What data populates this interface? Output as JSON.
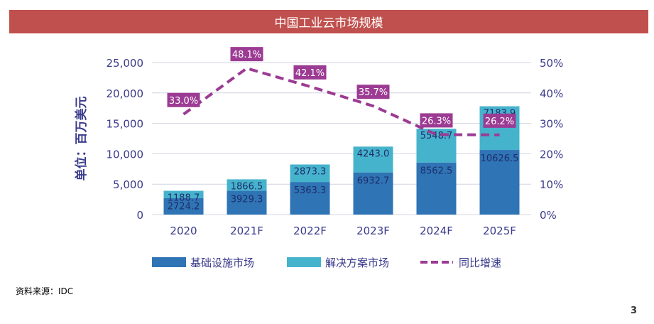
{
  "title": "中国工业云市场规模",
  "source": "资料来源：IDC",
  "page_number": "3",
  "colors": {
    "banner": "#c0504d",
    "infrastructure": "#2f74b5",
    "solutions": "#46b3cc",
    "growth": "#9c3b93",
    "axis_text": "#3a3a8c",
    "grid": "#d4d4e2"
  },
  "chart_data": {
    "type": "bar",
    "stacked": true,
    "categories": [
      "2020",
      "2021F",
      "2022F",
      "2023F",
      "2024F",
      "2025F"
    ],
    "ylabel": "单位：百万美元",
    "ylim": [
      0,
      25000
    ],
    "y_ticks": [
      "0",
      "5,000",
      "10,000",
      "15,000",
      "20,000",
      "25,000"
    ],
    "y2lim": [
      0,
      50
    ],
    "y2_ticks": [
      "0%",
      "10%",
      "20%",
      "30%",
      "40%",
      "50%"
    ],
    "grid": true,
    "legend_position": "bottom",
    "series": [
      {
        "name": "基础设施市场",
        "values": [
          2724.2,
          3929.3,
          5363.3,
          6932.7,
          8562.5,
          10626.5
        ],
        "labels": [
          "2724.2",
          "3929.3",
          "5363.3",
          "6932.7",
          "8562.5",
          "10626.5"
        ]
      },
      {
        "name": "解决方案市场",
        "values": [
          1188.7,
          1866.5,
          2873.3,
          4243.0,
          5548.7,
          7183.9
        ],
        "labels": [
          "1188.7",
          "1866.5",
          "2873.3",
          "4243.0",
          "5548.7",
          "7183.9"
        ]
      }
    ],
    "growth": {
      "name": "同比增速",
      "values": [
        33.0,
        48.1,
        42.1,
        35.7,
        26.3,
        26.2
      ],
      "labels": [
        "33.0%",
        "48.1%",
        "42.1%",
        "35.7%",
        "26.3%",
        "26.2%"
      ]
    }
  }
}
